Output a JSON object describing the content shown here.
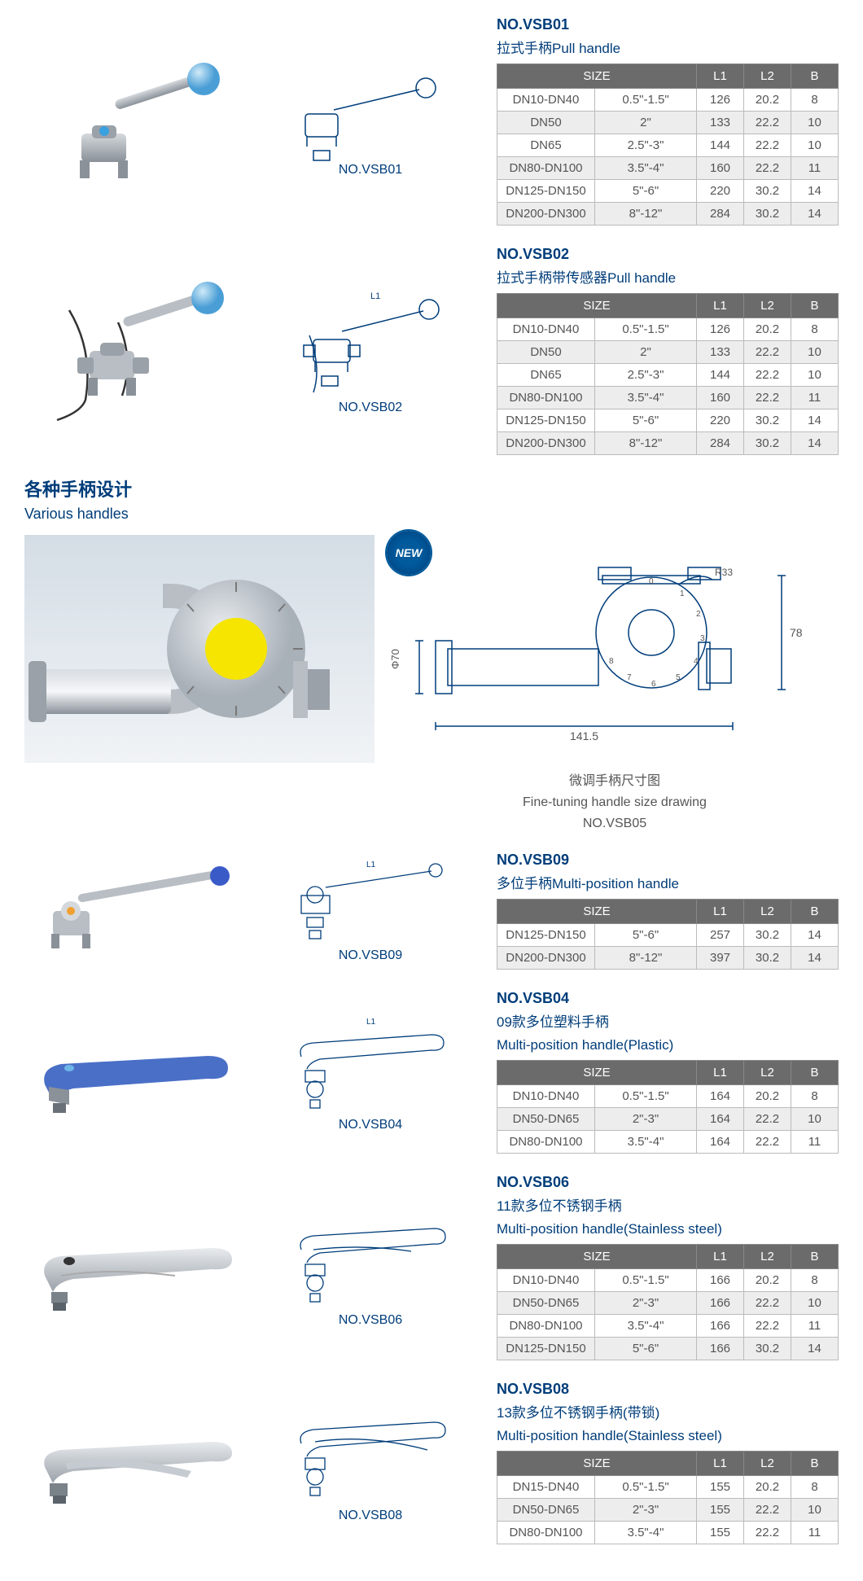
{
  "tables": {
    "vsb01": {
      "code": "NO.VSB01",
      "name": "拉式手柄Pull handle",
      "headers": [
        "SIZE",
        "L1",
        "L2",
        "B"
      ],
      "size_span": 2,
      "rows": [
        [
          "DN10-DN40",
          "0.5\"-1.5\"",
          "126",
          "20.2",
          "8"
        ],
        [
          "DN50",
          "2\"",
          "133",
          "22.2",
          "10"
        ],
        [
          "DN65",
          "2.5\"-3\"",
          "144",
          "22.2",
          "10"
        ],
        [
          "DN80-DN100",
          "3.5\"-4\"",
          "160",
          "22.2",
          "11"
        ],
        [
          "DN125-DN150",
          "5\"-6\"",
          "220",
          "30.2",
          "14"
        ],
        [
          "DN200-DN300",
          "8\"-12\"",
          "284",
          "30.2",
          "14"
        ]
      ]
    },
    "vsb02": {
      "code": "NO.VSB02",
      "name": "拉式手柄带传感器Pull handle",
      "headers": [
        "SIZE",
        "L1",
        "L2",
        "B"
      ],
      "rows": [
        [
          "DN10-DN40",
          "0.5\"-1.5\"",
          "126",
          "20.2",
          "8"
        ],
        [
          "DN50",
          "2\"",
          "133",
          "22.2",
          "10"
        ],
        [
          "DN65",
          "2.5\"-3\"",
          "144",
          "22.2",
          "10"
        ],
        [
          "DN80-DN100",
          "3.5\"-4\"",
          "160",
          "22.2",
          "11"
        ],
        [
          "DN125-DN150",
          "5\"-6\"",
          "220",
          "30.2",
          "14"
        ],
        [
          "DN200-DN300",
          "8\"-12\"",
          "284",
          "30.2",
          "14"
        ]
      ]
    },
    "vsb09": {
      "code": "NO.VSB09",
      "name": "多位手柄Multi-position handle",
      "headers": [
        "SIZE",
        "L1",
        "L2",
        "B"
      ],
      "rows": [
        [
          "DN125-DN150",
          "5\"-6\"",
          "257",
          "30.2",
          "14"
        ],
        [
          "DN200-DN300",
          "8\"-12\"",
          "397",
          "30.2",
          "14"
        ]
      ]
    },
    "vsb04": {
      "code": "NO.VSB04",
      "sub": "09款多位塑料手柄",
      "name": "Multi-position handle(Plastic)",
      "headers": [
        "SIZE",
        "L1",
        "L2",
        "B"
      ],
      "rows": [
        [
          "DN10-DN40",
          "0.5\"-1.5\"",
          "164",
          "20.2",
          "8"
        ],
        [
          "DN50-DN65",
          "2\"-3\"",
          "164",
          "22.2",
          "10"
        ],
        [
          "DN80-DN100",
          "3.5\"-4\"",
          "164",
          "22.2",
          "11"
        ]
      ]
    },
    "vsb06": {
      "code": "NO.VSB06",
      "sub": "11款多位不锈钢手柄",
      "name": "Multi-position handle(Stainless steel)",
      "headers": [
        "SIZE",
        "L1",
        "L2",
        "B"
      ],
      "rows": [
        [
          "DN10-DN40",
          "0.5\"-1.5\"",
          "166",
          "20.2",
          "8"
        ],
        [
          "DN50-DN65",
          "2\"-3\"",
          "166",
          "22.2",
          "10"
        ],
        [
          "DN80-DN100",
          "3.5\"-4\"",
          "166",
          "22.2",
          "11"
        ],
        [
          "DN125-DN150",
          "5\"-6\"",
          "166",
          "30.2",
          "14"
        ]
      ]
    },
    "vsb08": {
      "code": "NO.VSB08",
      "sub": "13款多位不锈钢手柄(带锁)",
      "name": "Multi-position handle(Stainless steel)",
      "headers": [
        "SIZE",
        "L1",
        "L2",
        "B"
      ],
      "rows": [
        [
          "DN15-DN40",
          "0.5\"-1.5\"",
          "155",
          "20.2",
          "8"
        ],
        [
          "DN50-DN65",
          "2\"-3\"",
          "155",
          "22.2",
          "10"
        ],
        [
          "DN80-DN100",
          "3.5\"-4\"",
          "155",
          "22.2",
          "11"
        ]
      ]
    }
  },
  "labels": {
    "vsb01": "NO.VSB01",
    "vsb02": "NO.VSB02",
    "vsb09": "NO.VSB09",
    "vsb04": "NO.VSB04",
    "vsb06": "NO.VSB06",
    "vsb08": "NO.VSB08",
    "vsb05_cn": "微调手柄尺寸图",
    "vsb05_en": "Fine-tuning handle size drawing",
    "vsb05_code": "NO.VSB05",
    "new": "NEW",
    "section_cn": "各种手柄设计",
    "section_en": "Various handles",
    "dim_1415": "141.5",
    "dim_78": "78",
    "dim_phi70": "Φ70",
    "dim_r33": "R33"
  },
  "colors": {
    "blue_ball": "#6db6e8",
    "blue_dark": "#003d7a",
    "steel": "#b8bec4",
    "steel_dark": "#8a9199",
    "yellow": "#f5e500",
    "plastic_blue": "#4a6fc7",
    "gradient_bg1": "#d4dde5",
    "gradient_bg2": "#f0f3f6",
    "header_gray": "#6b6b6b"
  }
}
